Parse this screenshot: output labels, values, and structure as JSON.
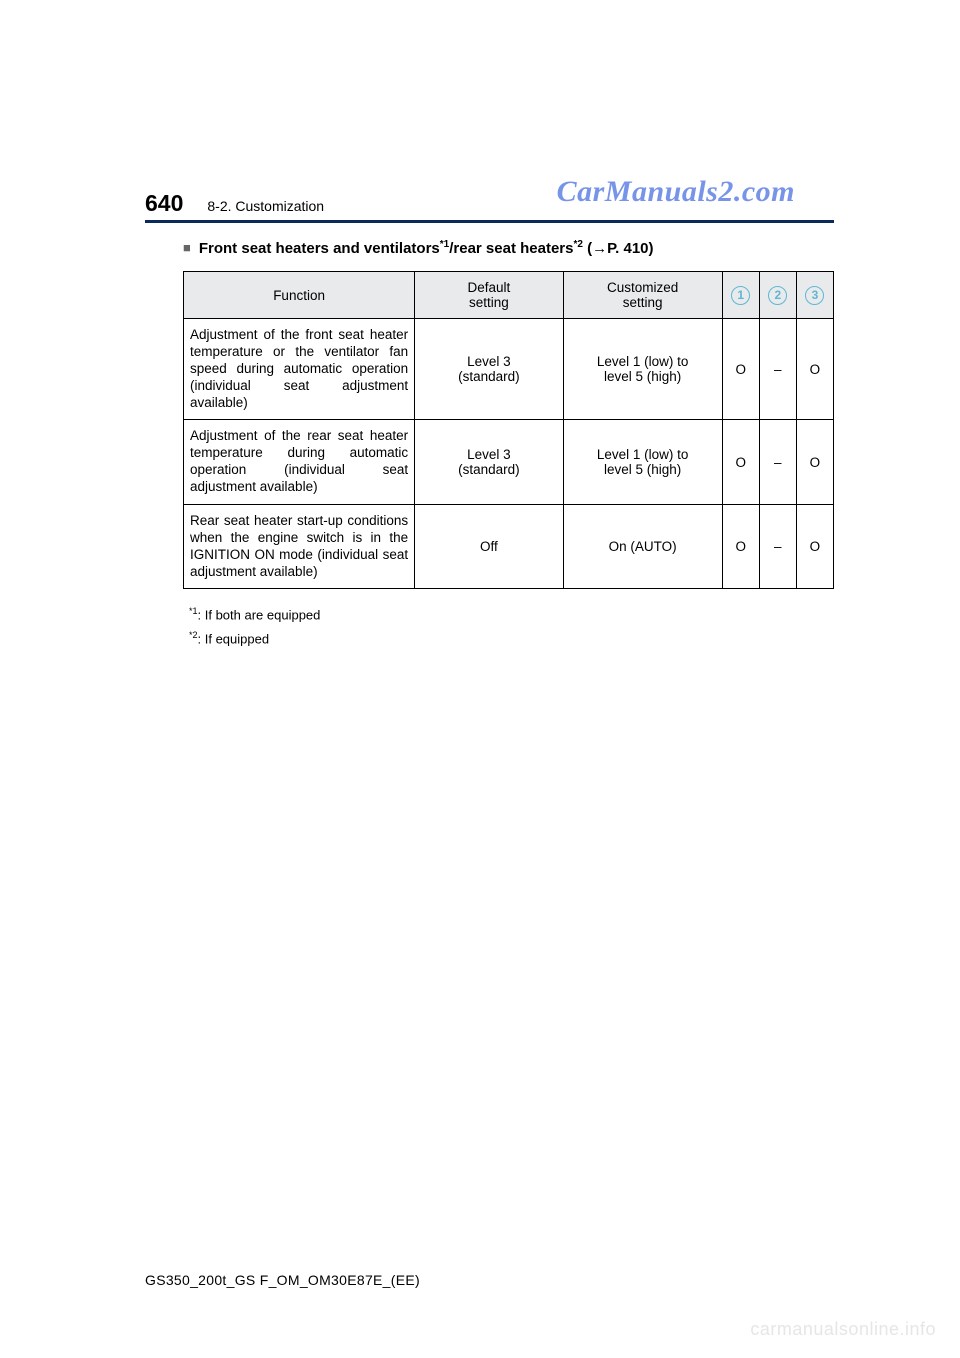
{
  "watermark_top": "CarManuals2.com",
  "watermark_bottom": "carmanualsonline.info",
  "page_number": "640",
  "section_label": "8-2. Customization",
  "heading": {
    "bullet": "■",
    "text_before": "Front seat heaters and ventilators",
    "sup1": "*1",
    "text_mid": "/rear seat heaters",
    "sup2": "*2",
    "text_after": " (→P. 410)"
  },
  "table": {
    "headers": {
      "function": "Function",
      "default": "Default\nsetting",
      "customized": "Customized\nsetting",
      "col1": "1",
      "col2": "2",
      "col3": "3"
    },
    "rows": [
      {
        "function": "Adjustment of the front seat heater temperature or the ventilator fan speed during automatic operation (individual seat adjustment available)",
        "default": "Level 3\n(standard)",
        "customized": "Level 1 (low) to\nlevel 5 (high)",
        "c1": "O",
        "c2": "–",
        "c3": "O"
      },
      {
        "function": "Adjustment of the rear seat heater temperature during automatic operation (individual seat adjustment available)",
        "default": "Level 3\n(standard)",
        "customized": "Level 1 (low) to\nlevel 5 (high)",
        "c1": "O",
        "c2": "–",
        "c3": "O"
      },
      {
        "function": "Rear seat heater start-up conditions when the engine switch is in the IGNITION ON mode (individual seat adjustment available)",
        "default": "Off",
        "customized": "On (AUTO)",
        "c1": "O",
        "c2": "–",
        "c3": "O"
      }
    ]
  },
  "footnotes": {
    "f1_sup": "*1",
    "f1_text": ": If both are equipped",
    "f2_sup": "*2",
    "f2_text": ": If equipped"
  },
  "doc_footer": "GS350_200t_GS F_OM_OM30E87E_(EE)",
  "colors": {
    "header_rule": "#0a2a5c",
    "circle": "#5fb7d4",
    "watermark_top": "#7894e8",
    "watermark_bottom": "#e6e6e6",
    "table_header_bg": "#e8eaec"
  }
}
